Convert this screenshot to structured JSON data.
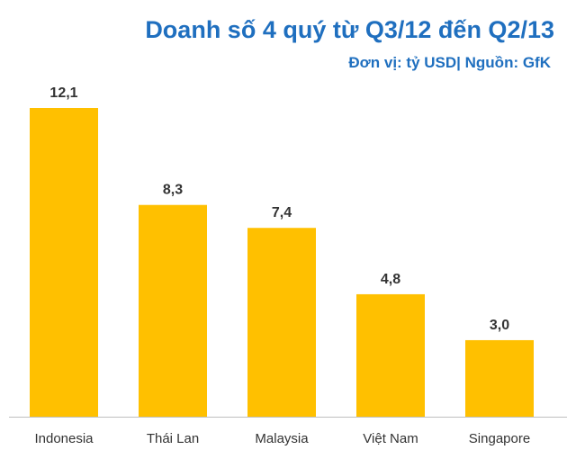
{
  "chart_data": {
    "type": "bar",
    "title": "Doanh số 4 quý từ Q3/12  đến Q2/13",
    "subtitle": "Đơn vị: tỷ USD| Nguồn: GfK",
    "categories": [
      "Indonesia",
      "Thái Lan",
      "Malaysia",
      "Việt Nam",
      "Singapore"
    ],
    "values": [
      12.1,
      8.3,
      7.4,
      4.8,
      3.0
    ],
    "data_labels": [
      "12,1",
      "8,3",
      "7,4",
      "4,8",
      "3,0"
    ],
    "ylim": [
      0,
      14
    ],
    "grid": false,
    "legend": "none",
    "bar_color": "#ffc000",
    "axis_color": "#bfbfbf"
  }
}
